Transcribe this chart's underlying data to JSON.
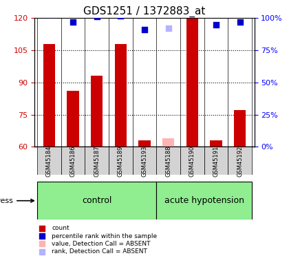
{
  "title": "GDS1251 / 1372883_at",
  "samples": [
    "GSM45184",
    "GSM45186",
    "GSM45187",
    "GSM45189",
    "GSM45193",
    "GSM45188",
    "GSM45190",
    "GSM45191",
    "GSM45192"
  ],
  "groups": {
    "control": [
      "GSM45184",
      "GSM45186",
      "GSM45187",
      "GSM45189",
      "GSM45193"
    ],
    "acute hypotension": [
      "GSM45188",
      "GSM45190",
      "GSM45191",
      "GSM45192"
    ]
  },
  "bar_values": [
    108,
    86,
    93,
    108,
    63,
    64,
    120,
    63,
    77
  ],
  "bar_colors": [
    "#cc0000",
    "#cc0000",
    "#cc0000",
    "#cc0000",
    "#cc0000",
    "#ffb3b3",
    "#cc0000",
    "#cc0000",
    "#cc0000"
  ],
  "rank_values": [
    103,
    97,
    101,
    102,
    91,
    92,
    103,
    95,
    97
  ],
  "rank_colors": [
    "#0000cc",
    "#0000cc",
    "#0000cc",
    "#0000cc",
    "#0000cc",
    "#b3b3ff",
    "#0000cc",
    "#0000cc",
    "#0000cc"
  ],
  "ylim_left": [
    60,
    120
  ],
  "ylim_right": [
    0,
    100
  ],
  "yticks_left": [
    60,
    75,
    90,
    105,
    120
  ],
  "yticks_right": [
    0,
    25,
    50,
    75,
    100
  ],
  "ytick_labels_left": [
    "60",
    "75",
    "90",
    "105",
    "120"
  ],
  "ytick_labels_right": [
    "0%",
    "25%",
    "50%",
    "75%",
    "100%"
  ],
  "group_label_control": "control",
  "group_label_hypotension": "acute hypotension",
  "stress_label": "stress",
  "legend_items": [
    {
      "label": "count",
      "color": "#cc0000",
      "marker": "s"
    },
    {
      "label": "percentile rank within the sample",
      "color": "#0000cc",
      "marker": "s"
    },
    {
      "label": "value, Detection Call = ABSENT",
      "color": "#ffb3b3",
      "marker": "s"
    },
    {
      "label": "rank, Detection Call = ABSENT",
      "color": "#b3b3ff",
      "marker": "s"
    }
  ],
  "bg_color_plot": "#ffffff",
  "bg_color_samples": "#d3d3d3",
  "bg_color_control": "#90ee90",
  "bg_color_hypotension": "#90ee90",
  "control_indices": [
    0,
    1,
    2,
    3,
    4
  ],
  "hypotension_indices": [
    5,
    6,
    7,
    8
  ]
}
